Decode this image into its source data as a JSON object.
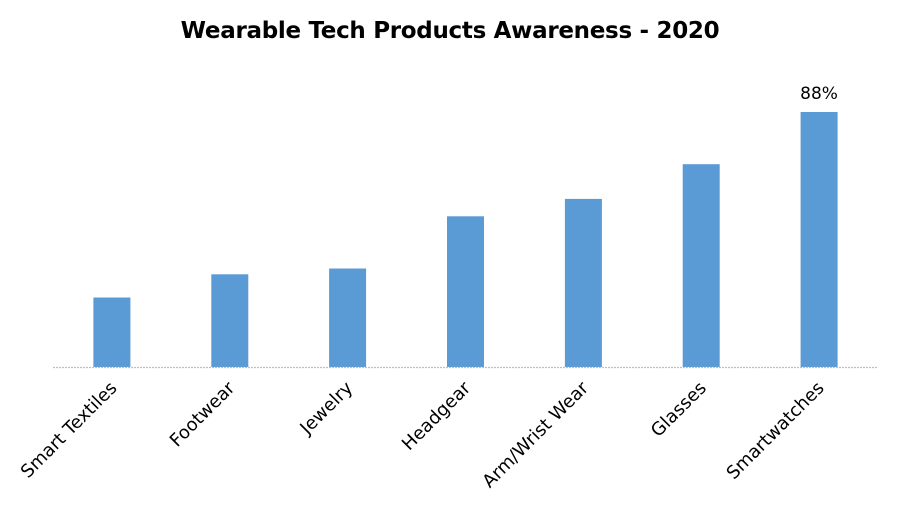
{
  "chart_data": {
    "type": "bar",
    "title": "Wearable Tech Products Awareness - 2020",
    "xlabel": "",
    "ylabel": "",
    "categories": [
      "Smart Textiles",
      "Footwear",
      "Jewelry",
      "Headgear",
      "Arm/Wrist Wear",
      "Glasses",
      "Smartwatches"
    ],
    "values": [
      24,
      32,
      34,
      52,
      58,
      70,
      88
    ],
    "unit": "%",
    "ylim": [
      0,
      100
    ],
    "grid": false,
    "legend": "none",
    "data_labels": [
      {
        "category": "Smartwatches",
        "text": "88%"
      }
    ],
    "bar_color": "#5B9BD5",
    "axis_color": "#BFBFBF"
  }
}
